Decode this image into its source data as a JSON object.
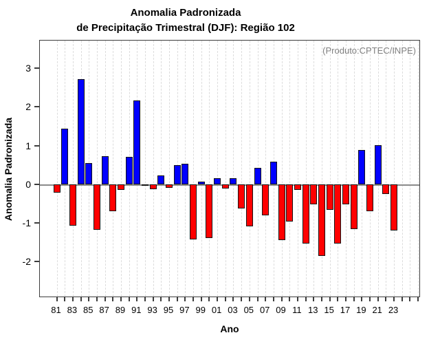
{
  "title": {
    "line1": "Anomalia Padronizada",
    "line2": "de Precipitação Trimestral (DJF): Região 102"
  },
  "annotation": "(Produto:CPTEC/INPE)",
  "axes": {
    "ylabel": "Anomalia Padronizada",
    "xlabel": "Ano"
  },
  "chart_data": {
    "type": "bar",
    "title": "Anomalia Padronizada de Precipitação Trimestral (DJF): Região 102",
    "xlabel": "Ano",
    "ylabel": "Anomalia Padronizada",
    "x": [
      1981,
      1982,
      1983,
      1984,
      1985,
      1986,
      1987,
      1988,
      1989,
      1990,
      1991,
      1992,
      1993,
      1994,
      1995,
      1996,
      1997,
      1998,
      1999,
      2000,
      2001,
      2002,
      2003,
      2004,
      2005,
      2006,
      2007,
      2008,
      2009,
      2010,
      2011,
      2012,
      2013,
      2014,
      2015,
      2016,
      2017,
      2018,
      2019,
      2020,
      2021,
      2022,
      2023
    ],
    "values": [
      -0.22,
      1.43,
      -1.07,
      2.71,
      0.55,
      -1.18,
      0.72,
      -0.7,
      -0.15,
      0.71,
      2.16,
      -0.02,
      -0.13,
      0.22,
      -0.09,
      0.49,
      0.53,
      -1.43,
      0.06,
      -1.39,
      0.15,
      -0.11,
      0.15,
      -0.62,
      -1.09,
      0.43,
      -0.8,
      0.58,
      -1.45,
      -0.96,
      -0.15,
      -1.53,
      -0.53,
      -1.86,
      -0.66,
      -1.53,
      -0.53,
      -1.16,
      0.88,
      -0.7,
      1.01,
      -0.25,
      -1.2
    ],
    "x_tick_labels": [
      "81",
      "83",
      "85",
      "87",
      "89",
      "91",
      "93",
      "95",
      "97",
      "99",
      "01",
      "03",
      "05",
      "07",
      "09",
      "11",
      "13",
      "15",
      "17",
      "19",
      "21",
      "23"
    ],
    "y_ticks": [
      3,
      2,
      1,
      0,
      -1,
      -2
    ],
    "ylim": [
      -2.9,
      3.7
    ],
    "grid": true,
    "legend": "none",
    "positive_color": "#0000ff",
    "negative_color": "#ff0000",
    "bar_outline_color": "#141414",
    "zero_line_color": "#8a8a8a",
    "grid_color": "#dcdcdc",
    "annotation_color": "#808080"
  }
}
